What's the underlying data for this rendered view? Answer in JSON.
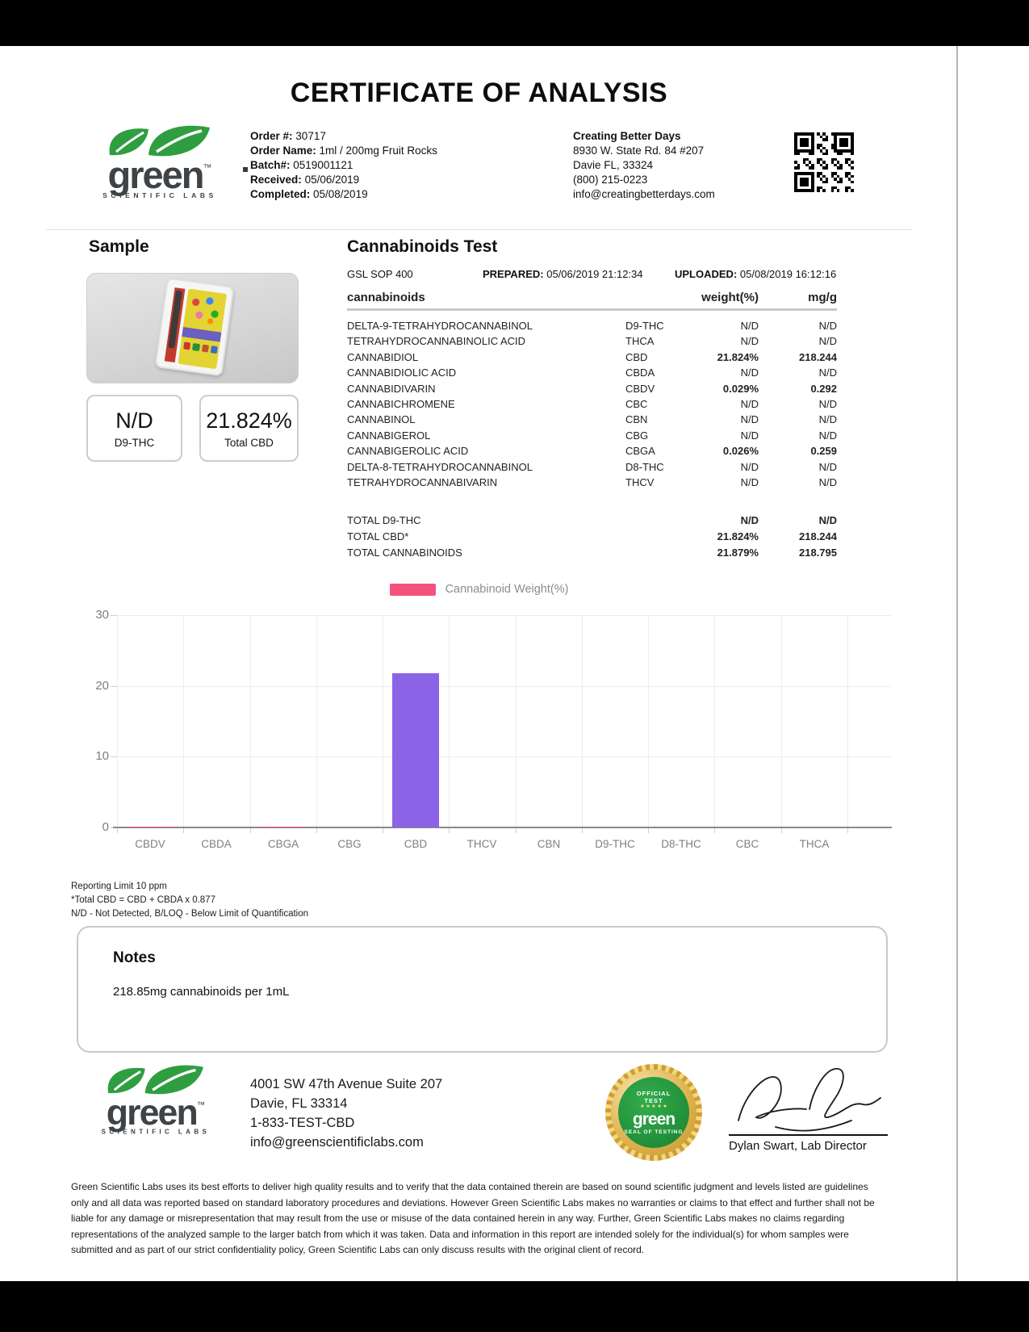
{
  "page_title": "CERTIFICATE OF ANALYSIS",
  "logo": {
    "brand": "green",
    "tm": "™",
    "tagline": "SCIENTIFIC LABS"
  },
  "order": {
    "order_label": "Order #:",
    "order_value": "30717",
    "name_label": "Order Name:",
    "name_value": "1ml / 200mg Fruit Rocks",
    "batch_label": "Batch#:",
    "batch_value": "0519001121",
    "received_label": "Received:",
    "received_value": "05/06/2019",
    "completed_label": "Completed:",
    "completed_value": "05/08/2019"
  },
  "client": {
    "name": "Creating Better Days",
    "address1": "8930 W. State Rd. 84 #207",
    "address2": "Davie FL, 33324",
    "phone": "(800) 215-0223",
    "email": "info@creatingbetterdays.com"
  },
  "sample": {
    "heading": "Sample",
    "stat1": {
      "value": "N/D",
      "label": "D9-THC"
    },
    "stat2": {
      "value": "21.824%",
      "label": "Total CBD"
    }
  },
  "test": {
    "heading": "Cannabinoids Test",
    "sop": "GSL SOP 400",
    "prepared_label": "PREPARED:",
    "prepared_value": "05/06/2019 21:12:34",
    "uploaded_label": "UPLOADED:",
    "uploaded_value": "05/08/2019 16:12:16",
    "columns": {
      "name": "cannabinoids",
      "weight": "weight(%)",
      "mgg": "mg/g"
    },
    "rows": [
      {
        "name": "DELTA-9-TETRAHYDROCANNABINOL",
        "abbr": "D9-THC",
        "weight": "N/D",
        "mgg": "N/D",
        "detected": false
      },
      {
        "name": "TETRAHYDROCANNABINOLIC ACID",
        "abbr": "THCA",
        "weight": "N/D",
        "mgg": "N/D",
        "detected": false
      },
      {
        "name": "CANNABIDIOL",
        "abbr": "CBD",
        "weight": "21.824%",
        "mgg": "218.244",
        "detected": true
      },
      {
        "name": "CANNABIDIOLIC ACID",
        "abbr": "CBDA",
        "weight": "N/D",
        "mgg": "N/D",
        "detected": false
      },
      {
        "name": "CANNABIDIVARIN",
        "abbr": "CBDV",
        "weight": "0.029%",
        "mgg": "0.292",
        "detected": true
      },
      {
        "name": "CANNABICHROMENE",
        "abbr": "CBC",
        "weight": "N/D",
        "mgg": "N/D",
        "detected": false
      },
      {
        "name": "CANNABINOL",
        "abbr": "CBN",
        "weight": "N/D",
        "mgg": "N/D",
        "detected": false
      },
      {
        "name": "CANNABIGEROL",
        "abbr": "CBG",
        "weight": "N/D",
        "mgg": "N/D",
        "detected": false
      },
      {
        "name": "CANNABIGEROLIC ACID",
        "abbr": "CBGA",
        "weight": "0.026%",
        "mgg": "0.259",
        "detected": true
      },
      {
        "name": "DELTA-8-TETRAHYDROCANNABINOL",
        "abbr": "D8-THC",
        "weight": "N/D",
        "mgg": "N/D",
        "detected": false
      },
      {
        "name": "TETRAHYDROCANNABIVARIN",
        "abbr": "THCV",
        "weight": "N/D",
        "mgg": "N/D",
        "detected": false
      }
    ],
    "totals": [
      {
        "name": "TOTAL D9-THC",
        "weight": "N/D",
        "mgg": "N/D"
      },
      {
        "name": "TOTAL CBD*",
        "weight": "21.824%",
        "mgg": "218.244"
      },
      {
        "name": "TOTAL CANNABINOIDS",
        "weight": "21.879%",
        "mgg": "218.795"
      }
    ]
  },
  "chart_data": {
    "type": "bar",
    "title": "",
    "legend": "Cannabinoid Weight(%)",
    "legend_position": "top",
    "categories": [
      "CBDV",
      "CBDA",
      "CBGA",
      "CBG",
      "CBD",
      "THCV",
      "CBN",
      "D9-THC",
      "D8-THC",
      "CBC",
      "THCA"
    ],
    "values": [
      0.029,
      0,
      0.026,
      0,
      21.824,
      0,
      0,
      0,
      0,
      0,
      0
    ],
    "xlabel": "",
    "ylabel": "",
    "ylim": [
      0,
      30
    ],
    "yticks": [
      0,
      10,
      20,
      30
    ],
    "grid": true,
    "bar_color_default": "#f4537e",
    "bar_color_highlight": "#8a63e6",
    "highlight_category": "CBD"
  },
  "footnotes": [
    "Reporting Limit 10 ppm",
    "*Total CBD = CBD + CBDA x 0.877",
    "N/D - Not Detected, B/LOQ - Below Limit of Quantification"
  ],
  "notes": {
    "heading": "Notes",
    "body": "218.85mg cannabinoids per 1mL"
  },
  "footer": {
    "address1": "4001 SW 47th Avenue Suite 207",
    "address2": "Davie, FL 33314",
    "phone": "1-833-TEST-CBD",
    "email": "info@greenscientificlabs.com",
    "seal_top": "OFFICIAL\nTEST",
    "seal_brand": "green",
    "seal_bottom": "SEAL OF TESTING",
    "seal_stars": "★ ★ ★ ★ ★",
    "signature_name": "Dylan Swart, Lab Director"
  },
  "colors": {
    "bar_purple": "#8a63e6",
    "legend_pink": "#f4537e",
    "logo_green": "#2f9e41",
    "logo_dark": "#3d4347"
  },
  "disclaimer": "Green Scientific Labs uses its best efforts to deliver high quality results and to verify that the data contained therein are based on sound scientific judgment and levels listed are guidelines only and all data was reported based on standard laboratory procedures and deviations. However Green Scientific Labs makes no warranties or claims to that effect and further shall not be liable for any damage or misrepresentation that may result from the use or misuse of the data contained herein in any way. Further, Green Scientific Labs makes no claims regarding representations of the analyzed sample to the larger batch from which it was taken. Data and information in this report are intended solely for the individual(s) for whom samples were submitted and as part of our strict confidentiality policy, Green Scientific Labs can only discuss results with the original client of record."
}
